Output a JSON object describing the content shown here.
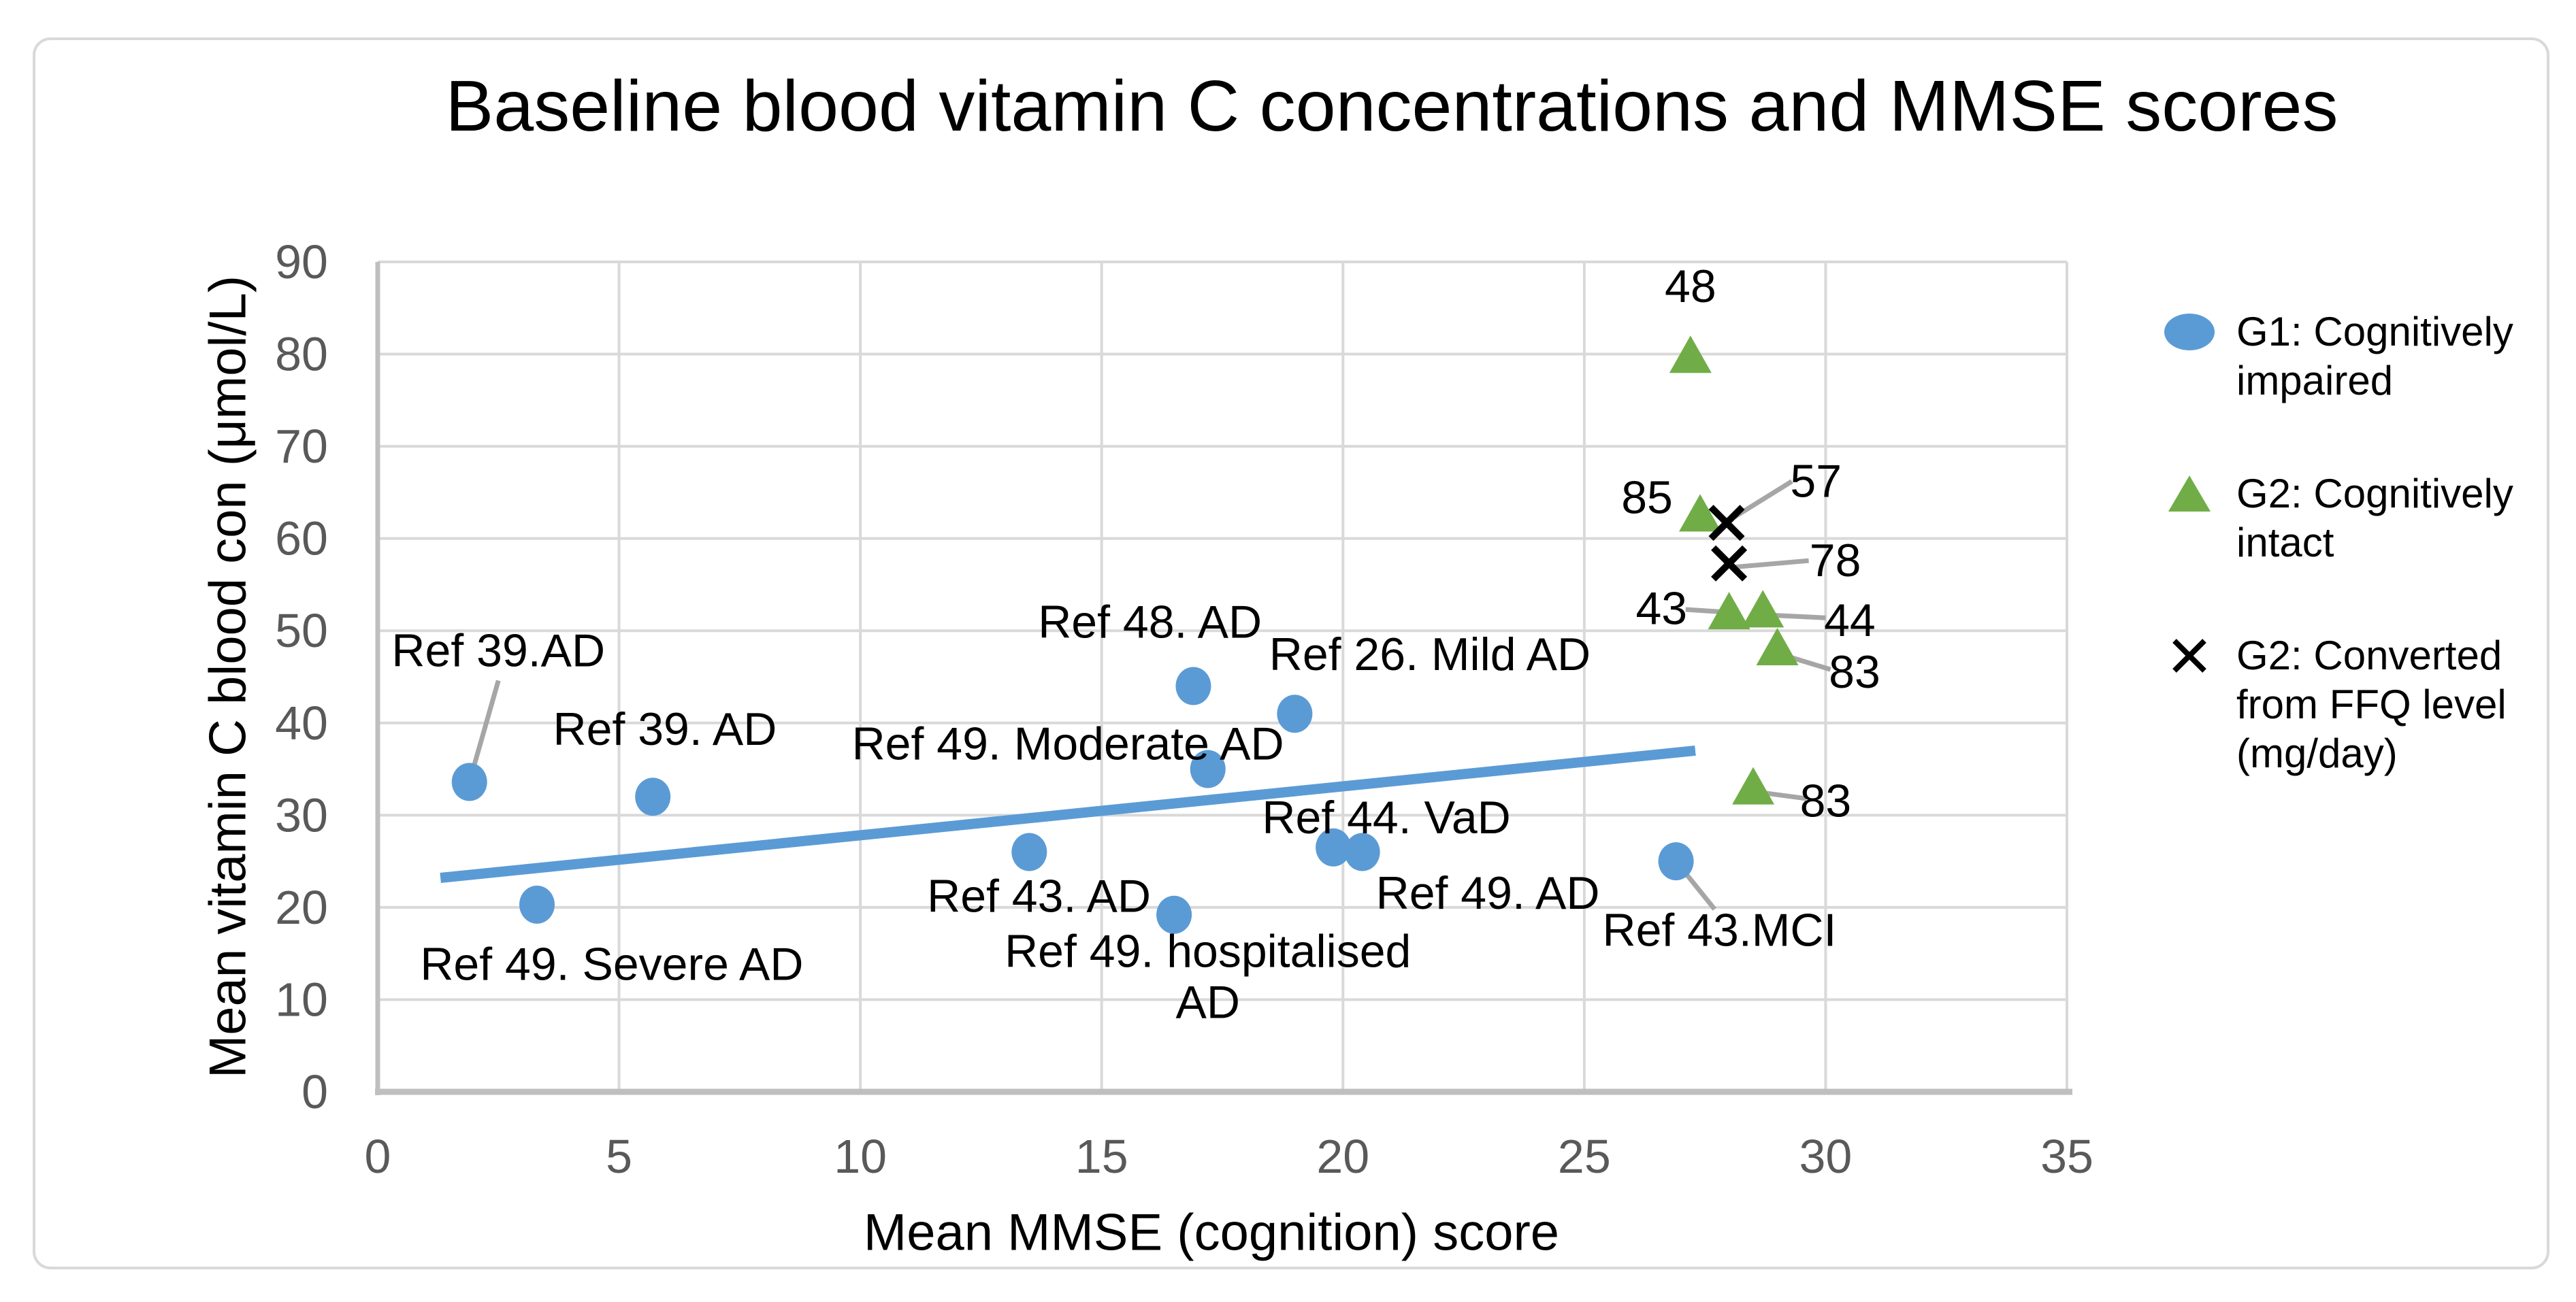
{
  "title": "Baseline blood vitamin C concentrations and MMSE scores",
  "chart_data": {
    "type": "scatter",
    "title": "Baseline blood vitamin C concentrations and MMSE scores",
    "xlabel": "Mean MMSE (cognition) score",
    "ylabel": "Mean vitamin C blood con (μmol/L)",
    "xlim": [
      0,
      35
    ],
    "ylim": [
      0,
      90
    ],
    "xticks": [
      0,
      5,
      10,
      15,
      20,
      25,
      30,
      35
    ],
    "yticks": [
      0,
      10,
      20,
      30,
      40,
      50,
      60,
      70,
      80,
      90
    ],
    "grid": true,
    "legend_position": "right",
    "colors": {
      "g1": "#5b9bd5",
      "g2": "#70ad47",
      "ffq": "#000000",
      "gridline": "#d9d9d9",
      "axis_line": "#bfbfbf",
      "tick_text": "#595959",
      "label_text": "#000000",
      "leader": "#a6a6a6",
      "trendline": "#5b9bd5"
    },
    "series": [
      {
        "name": "G1: Cognitively impaired",
        "marker": "circle",
        "color": "#5b9bd5",
        "points": [
          {
            "x": 1.9,
            "y": 33.6,
            "label": "Ref 39.AD",
            "label_pos": [
              2.5,
              47.9
            ],
            "leader": [
              [
                2.5,
                44.6
              ],
              [
                1.9,
                33.6
              ]
            ]
          },
          {
            "x": 3.3,
            "y": 20.3,
            "label": "Ref 49. Severe AD",
            "label_pos": [
              4.85,
              13.9
            ]
          },
          {
            "x": 5.7,
            "y": 32.0,
            "label": "Ref 39. AD",
            "label_pos": [
              5.95,
              39.4
            ]
          },
          {
            "x": 13.5,
            "y": 26.0,
            "label": "Ref 43. AD",
            "label_pos": [
              13.7,
              21.3
            ]
          },
          {
            "x": 16.9,
            "y": 44.0,
            "label": "Ref 48. AD",
            "label_pos": [
              16.0,
              51.0
            ]
          },
          {
            "x": 17.2,
            "y": 35.0,
            "label": "Ref 49. Moderate AD",
            "label_pos": [
              14.3,
              37.8
            ]
          },
          {
            "x": 16.5,
            "y": 19.2,
            "label": "Ref 49. hospitalised AD",
            "label_lines": [
              "Ref 49. hospitalised",
              "AD"
            ],
            "label_pos": [
              17.2,
              15.3
            ]
          },
          {
            "x": 19.0,
            "y": 41.0,
            "label": "Ref 26. Mild AD",
            "label_pos": [
              21.8,
              47.5
            ]
          },
          {
            "x": 19.8,
            "y": 26.5,
            "label": "Ref 44. VaD",
            "label_pos": [
              20.9,
              29.8
            ]
          },
          {
            "x": 20.4,
            "y": 26.0,
            "label": "Ref 49. AD",
            "label_pos": [
              23.0,
              21.6
            ]
          },
          {
            "x": 26.9,
            "y": 25.0,
            "label": "Ref 43.MCI",
            "label_pos": [
              27.8,
              17.6
            ],
            "leader": [
              [
                27.7,
                19.8
              ],
              [
                26.9,
                25.0
              ]
            ]
          }
        ]
      },
      {
        "name": "G2: Cognitively intact",
        "marker": "triangle",
        "color": "#70ad47",
        "points": [
          {
            "x": 27.2,
            "y": 79.8,
            "label": "48",
            "label_pos": [
              27.2,
              87.4
            ]
          },
          {
            "x": 27.4,
            "y": 62.6,
            "label": "85",
            "label_pos": [
              26.3,
              64.5
            ]
          },
          {
            "x": 28.0,
            "y": 52.0,
            "label": "43",
            "label_pos": [
              26.6,
              52.5
            ],
            "leader": [
              [
                27.1,
                52.3
              ],
              [
                28.0,
                52.0
              ]
            ]
          },
          {
            "x": 28.7,
            "y": 52.2,
            "label": "44",
            "label_pos": [
              30.5,
              51.2
            ],
            "leader": [
              [
                28.8,
                51.7
              ],
              [
                30.0,
                51.4
              ]
            ]
          },
          {
            "x": 29.0,
            "y": 48.1,
            "label": "83",
            "label_pos": [
              30.6,
              45.6
            ],
            "leader": [
              [
                29.1,
                47.4
              ],
              [
                30.1,
                45.8
              ]
            ]
          },
          {
            "x": 28.5,
            "y": 33.0,
            "label": "83",
            "label_pos": [
              30.0,
              31.6
            ],
            "leader": [
              [
                28.6,
                32.5
              ],
              [
                29.6,
                31.8
              ]
            ]
          }
        ]
      },
      {
        "name": "G2: Converted from FFQ level (mg/day)",
        "marker": "x",
        "color": "#000000",
        "points": [
          {
            "x": 27.95,
            "y": 61.7,
            "label": "57",
            "label_pos": [
              29.8,
              66.3
            ],
            "leader": [
              [
                28.1,
                62.3
              ],
              [
                29.3,
                66.2
              ]
            ]
          },
          {
            "x": 28.0,
            "y": 57.3,
            "label": "78",
            "label_pos": [
              30.2,
              57.7
            ],
            "leader": [
              [
                28.1,
                56.9
              ],
              [
                29.65,
                57.6
              ]
            ]
          }
        ]
      }
    ],
    "trendline": {
      "series": "G1: Cognitively impaired",
      "color": "#5b9bd5",
      "from": [
        1.3,
        23.2
      ],
      "to": [
        27.3,
        37.0
      ]
    }
  },
  "legend": {
    "items": [
      {
        "marker": "circle",
        "color": "#5b9bd5",
        "label": "G1: Cognitively impaired",
        "label_lines": [
          "G1: Cognitively",
          "impaired"
        ]
      },
      {
        "marker": "triangle",
        "color": "#70ad47",
        "label": "G2: Cognitively intact",
        "label_lines": [
          "G2: Cognitively",
          "intact"
        ]
      },
      {
        "marker": "x",
        "color": "#000000",
        "label": "G2: Converted from FFQ level (mg/day)",
        "label_lines": [
          "G2: Converted",
          "from FFQ level",
          "(mg/day)"
        ]
      }
    ]
  }
}
